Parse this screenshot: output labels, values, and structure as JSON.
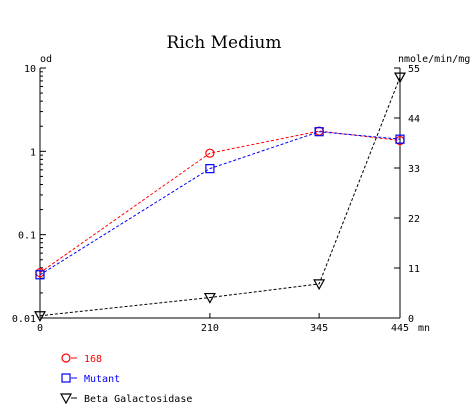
{
  "chart_data": {
    "type": "line",
    "title": "Rich Medium",
    "ylabel_left": "od",
    "ylabel_right": "nmole/min/mg",
    "xlabel": "mn",
    "x": [
      0,
      210,
      345,
      445
    ],
    "x_ticks": [
      "0",
      "210",
      "345",
      "445"
    ],
    "y_left_scale": "log",
    "y_left_lim": [
      0.01,
      10
    ],
    "y_left_ticks": [
      "10",
      "1",
      "0.1",
      "0.01"
    ],
    "y_right_lim": [
      0,
      55
    ],
    "y_right_ticks": [
      "55",
      "44",
      "33",
      "22",
      "11",
      "0"
    ],
    "grid": false,
    "legend_position": "bottom-left",
    "series": [
      {
        "name": "168",
        "axis": "left",
        "color": "#ff0000",
        "marker": "circle",
        "values": [
          0.035,
          0.95,
          1.75,
          1.35
        ]
      },
      {
        "name": "Mutant",
        "axis": "left",
        "color": "#0000ff",
        "marker": "square",
        "values": [
          0.033,
          0.62,
          1.72,
          1.4
        ]
      },
      {
        "name": "Beta Galactosidase",
        "axis": "right",
        "color": "#000000",
        "marker": "triangle-down",
        "values": [
          0.5,
          4.5,
          7.5,
          53
        ]
      }
    ]
  }
}
